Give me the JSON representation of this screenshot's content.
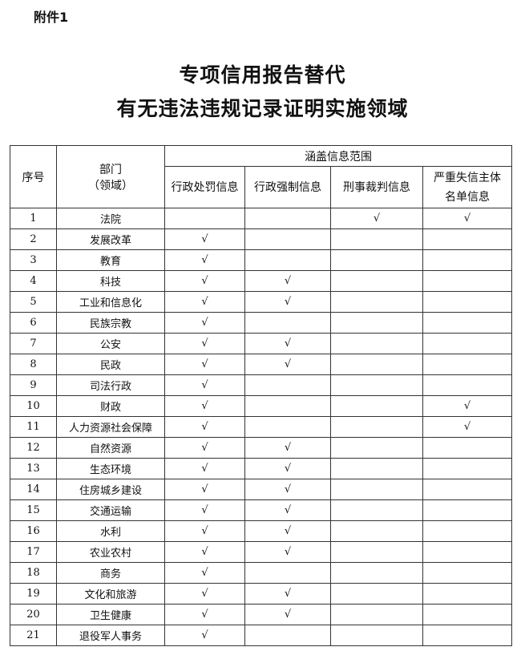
{
  "attachment_label": "附件1",
  "title_line1": "专项信用报告替代",
  "title_line2": "有无违法违规记录证明实施领域",
  "table": {
    "headers": {
      "no": "序号",
      "dept_line1": "部门",
      "dept_line2": "（领域）",
      "group": "涵盖信息范围",
      "cols": [
        "行政处罚信息",
        "行政强制信息",
        "刑事裁判信息"
      ],
      "col4_line1": "严重失信主体",
      "col4_line2": "名单信息"
    },
    "rows": [
      {
        "no": "1",
        "dept": "法院",
        "c": [
          "",
          "",
          "√",
          "√"
        ]
      },
      {
        "no": "2",
        "dept": "发展改革",
        "c": [
          "√",
          "",
          "",
          ""
        ]
      },
      {
        "no": "3",
        "dept": "教育",
        "c": [
          "√",
          "",
          "",
          ""
        ]
      },
      {
        "no": "4",
        "dept": "科技",
        "c": [
          "√",
          "√",
          "",
          ""
        ]
      },
      {
        "no": "5",
        "dept": "工业和信息化",
        "c": [
          "√",
          "√",
          "",
          ""
        ]
      },
      {
        "no": "6",
        "dept": "民族宗教",
        "c": [
          "√",
          "",
          "",
          ""
        ]
      },
      {
        "no": "7",
        "dept": "公安",
        "c": [
          "√",
          "√",
          "",
          ""
        ]
      },
      {
        "no": "8",
        "dept": "民政",
        "c": [
          "√",
          "√",
          "",
          ""
        ]
      },
      {
        "no": "9",
        "dept": "司法行政",
        "c": [
          "√",
          "",
          "",
          ""
        ]
      },
      {
        "no": "10",
        "dept": "财政",
        "c": [
          "√",
          "",
          "",
          "√"
        ]
      },
      {
        "no": "11",
        "dept": "人力资源社会保障",
        "c": [
          "√",
          "",
          "",
          "√"
        ]
      },
      {
        "no": "12",
        "dept": "自然资源",
        "c": [
          "√",
          "√",
          "",
          ""
        ]
      },
      {
        "no": "13",
        "dept": "生态环境",
        "c": [
          "√",
          "√",
          "",
          ""
        ]
      },
      {
        "no": "14",
        "dept": "住房城乡建设",
        "c": [
          "√",
          "√",
          "",
          ""
        ]
      },
      {
        "no": "15",
        "dept": "交通运输",
        "c": [
          "√",
          "√",
          "",
          ""
        ]
      },
      {
        "no": "16",
        "dept": "水利",
        "c": [
          "√",
          "√",
          "",
          ""
        ]
      },
      {
        "no": "17",
        "dept": "农业农村",
        "c": [
          "√",
          "√",
          "",
          ""
        ]
      },
      {
        "no": "18",
        "dept": "商务",
        "c": [
          "√",
          "",
          "",
          ""
        ]
      },
      {
        "no": "19",
        "dept": "文化和旅游",
        "c": [
          "√",
          "√",
          "",
          ""
        ]
      },
      {
        "no": "20",
        "dept": "卫生健康",
        "c": [
          "√",
          "√",
          "",
          ""
        ]
      },
      {
        "no": "21",
        "dept": "退役军人事务",
        "c": [
          "√",
          "",
          "",
          ""
        ]
      }
    ]
  }
}
